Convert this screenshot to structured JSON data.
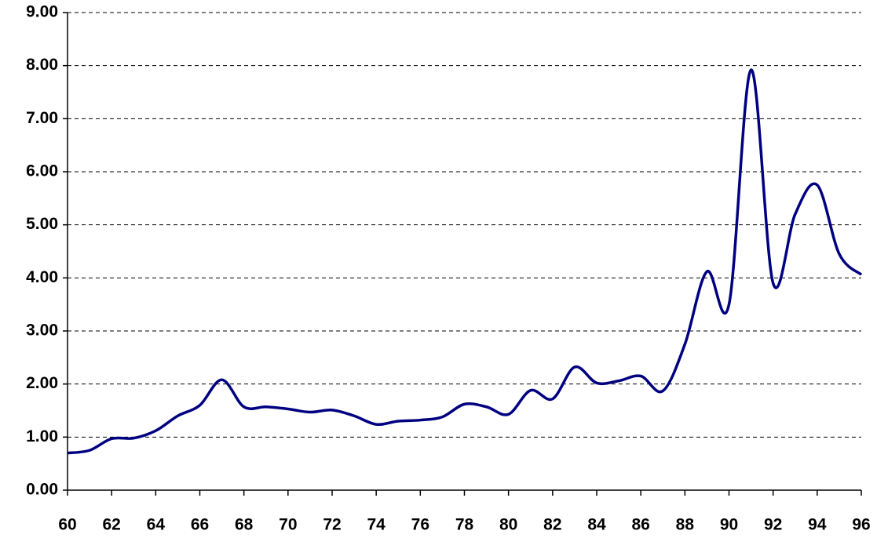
{
  "chart_data": {
    "type": "line",
    "x": [
      60,
      61,
      62,
      63,
      64,
      65,
      66,
      67,
      68,
      69,
      70,
      71,
      72,
      73,
      74,
      75,
      76,
      77,
      78,
      79,
      80,
      81,
      82,
      83,
      84,
      85,
      86,
      87,
      88,
      89,
      90,
      91,
      92,
      93,
      94,
      95,
      96
    ],
    "series": [
      {
        "color": "#000080",
        "values": [
          0.7,
          0.75,
          0.97,
          0.98,
          1.12,
          1.4,
          1.6,
          2.08,
          1.57,
          1.57,
          1.53,
          1.47,
          1.51,
          1.4,
          1.24,
          1.3,
          1.32,
          1.38,
          1.62,
          1.57,
          1.43,
          1.88,
          1.72,
          2.32,
          2.02,
          2.06,
          2.15,
          1.87,
          2.75,
          4.12,
          3.5,
          7.92,
          3.9,
          5.2,
          5.75,
          4.45,
          4.06
        ]
      }
    ],
    "xlim": [
      60,
      96
    ],
    "xticks": [
      60,
      62,
      64,
      66,
      68,
      70,
      72,
      74,
      76,
      78,
      80,
      82,
      84,
      86,
      88,
      90,
      92,
      94,
      96
    ],
    "ylim": [
      0,
      9
    ],
    "yticks": [
      {
        "value": 0,
        "label": "0.00"
      },
      {
        "value": 1,
        "label": "1.00"
      },
      {
        "value": 2,
        "label": "2.00"
      },
      {
        "value": 3,
        "label": "3.00"
      },
      {
        "value": 4,
        "label": "4.00"
      },
      {
        "value": 5,
        "label": "5.00"
      },
      {
        "value": 6,
        "label": "6.00"
      },
      {
        "value": 7,
        "label": "7.00"
      },
      {
        "value": 8,
        "label": "8.00"
      },
      {
        "value": 9,
        "label": "9.00"
      }
    ],
    "grid": true
  }
}
